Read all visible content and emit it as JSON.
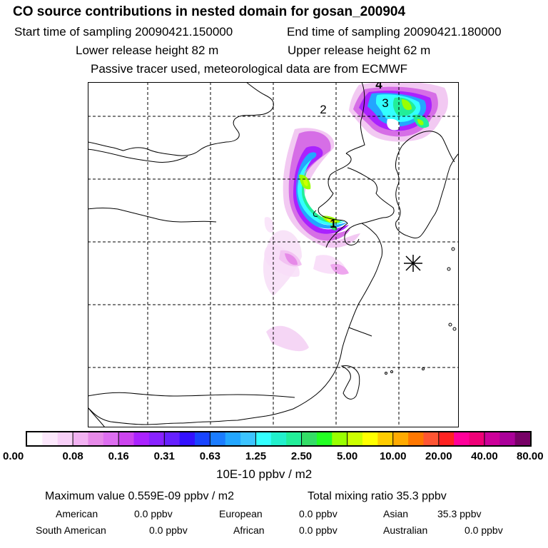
{
  "header": {
    "title": "CO  source contributions in nested domain for gosan_200904",
    "start_time": "Start time of sampling 20090421.150000",
    "end_time": "End time of sampling 20090421.180000",
    "lower_height": "Lower release height   82 m",
    "upper_height": "Upper release height   62 m",
    "tracer_note": "Passive tracer used, meteorological data are from ECMWF"
  },
  "map": {
    "markers": [
      "1",
      "2",
      "3",
      "4"
    ],
    "station_symbol": "asterisk"
  },
  "colorbar": {
    "colors": [
      "#ffffff",
      "#fce8fc",
      "#f8d0f8",
      "#f2b2f2",
      "#e68ae8",
      "#dd6ef0",
      "#cc44ee",
      "#aa22ff",
      "#8822ff",
      "#6620ff",
      "#3311ff",
      "#1844ff",
      "#1b7cff",
      "#23a6ff",
      "#3cc4ff",
      "#33ffff",
      "#22f0cc",
      "#22ee99",
      "#33dd66",
      "#22ff22",
      "#99ff00",
      "#ccff00",
      "#ffff00",
      "#ffcc00",
      "#ffaa00",
      "#ff7700",
      "#ff5533",
      "#ff2222",
      "#ff0099",
      "#ee0077",
      "#cc0099",
      "#aa0099",
      "#770066"
    ],
    "tick_labels": [
      "0.00",
      "0.08",
      "0.16",
      "0.31",
      "0.63",
      "1.25",
      "2.50",
      "5.00",
      "10.00",
      "20.00",
      "40.00",
      "80.00"
    ],
    "unit_label": "10E-10 ppbv / m2"
  },
  "footer": {
    "max_value": "Maximum value  0.559E-09 ppbv / m2",
    "total_mixing": "Total mixing ratio       35.3 ppbv",
    "american_label": "American",
    "american_value": "0.0 ppbv",
    "european_label": "European",
    "european_value": "0.0 ppbv",
    "asian_label": "Asian",
    "asian_value": "35.3 ppbv",
    "south_american_label": "South American",
    "south_american_value": "0.0 ppbv",
    "african_label": "African",
    "african_value": "0.0 ppbv",
    "australian_label": "Australian",
    "australian_value": "0.0 ppbv"
  }
}
